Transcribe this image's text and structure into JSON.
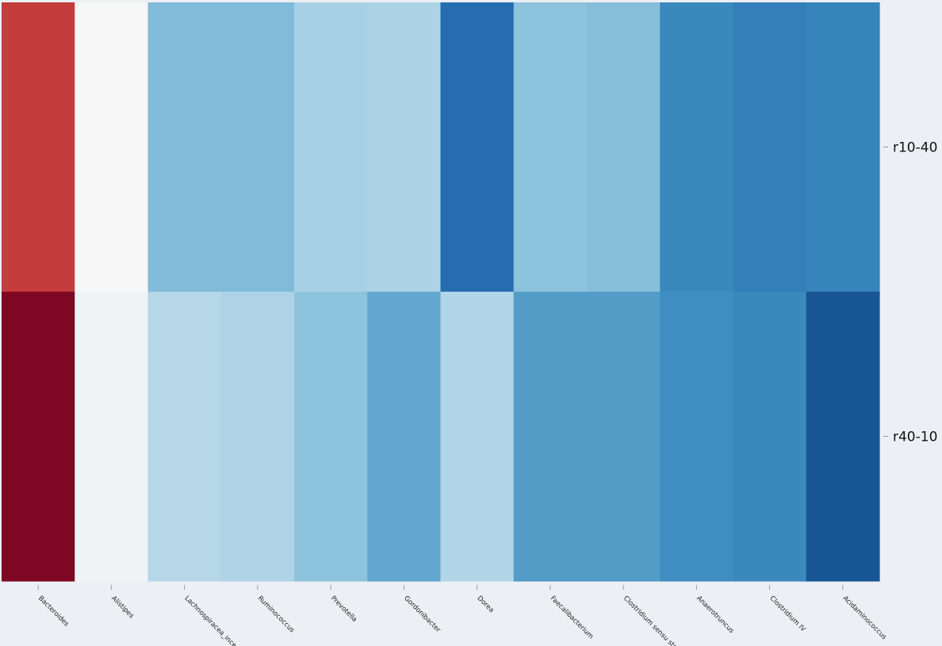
{
  "chart_data": {
    "type": "heatmap",
    "title": "",
    "xlabel": "",
    "ylabel": "",
    "colormap": "RdBu",
    "value_range": [
      0,
      1
    ],
    "colorbar": false,
    "grid": false,
    "x_categories": [
      "Bacteroides",
      "Alistipes",
      "Lachnospiracea_incer",
      "Ruminococcus",
      "Prevotella",
      "Gordonibacter",
      "Dorea",
      "Faecalibacterium",
      "Clostridium sensu str",
      "Anaerotruncus",
      "Clostridium IV",
      "Acidaminococcus"
    ],
    "y_categories": [
      "r10-40",
      "r40-10"
    ],
    "values": [
      [
        0.15,
        0.5,
        0.72,
        0.72,
        0.665,
        0.66,
        0.885,
        0.705,
        0.715,
        0.825,
        0.845,
        0.835
      ],
      [
        0.03,
        0.52,
        0.645,
        0.655,
        0.705,
        0.76,
        0.65,
        0.78,
        0.78,
        0.81,
        0.825,
        0.93
      ]
    ]
  }
}
